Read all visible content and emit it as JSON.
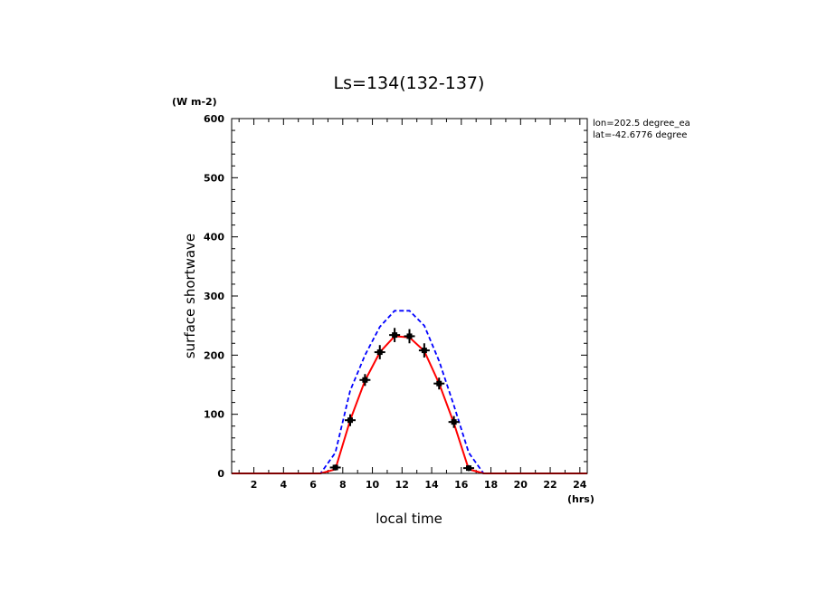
{
  "chart_data": {
    "type": "line",
    "title": "Ls=134(132-137)",
    "xlabel": "local time",
    "ylabel": "surface shortwave",
    "x_unit": "(hrs)",
    "y_unit": "(W m-2)",
    "annotations": [
      "lon=202.5 degree_ea",
      "lat=-42.6776 degree"
    ],
    "xlim": [
      0.5,
      24.5
    ],
    "ylim": [
      0,
      600
    ],
    "x_ticks": [
      2,
      4,
      6,
      8,
      10,
      12,
      14,
      16,
      18,
      20,
      22,
      24
    ],
    "y_ticks": [
      0,
      100,
      200,
      300,
      400,
      500,
      600
    ],
    "grid": false,
    "series": [
      {
        "style": "dashed",
        "color": "#0000ff",
        "x": [
          0.5,
          1.5,
          2.5,
          3.5,
          4.5,
          5.5,
          6.5,
          7.5,
          8.5,
          9.5,
          10.5,
          11.5,
          12.5,
          13.5,
          14.5,
          15.5,
          16.5,
          17.5,
          18.5,
          19.5,
          20.5,
          21.5,
          22.5,
          23.5,
          24.5
        ],
        "y": [
          0,
          0,
          0,
          0,
          0,
          0,
          0,
          35,
          140,
          200,
          248,
          275,
          275,
          250,
          190,
          115,
          35,
          0,
          0,
          0,
          0,
          0,
          0,
          0,
          0
        ]
      },
      {
        "style": "solid",
        "color": "#ff0000",
        "x": [
          0.5,
          1.5,
          2.5,
          3.5,
          4.5,
          5.5,
          6.5,
          7.5,
          8.5,
          9.5,
          10.5,
          11.5,
          12.5,
          13.5,
          14.5,
          15.5,
          16.5,
          17.5,
          18.5,
          19.5,
          20.5,
          21.5,
          22.5,
          23.5,
          24.5
        ],
        "y": [
          0,
          0,
          0,
          0,
          0,
          0,
          0,
          7,
          90,
          157,
          205,
          232,
          230,
          207,
          152,
          85,
          7,
          0,
          0,
          0,
          0,
          0,
          0,
          0,
          0
        ]
      },
      {
        "style": "markers",
        "color": "#000000",
        "x": [
          7.5,
          8.5,
          9.5,
          10.5,
          11.5,
          12.5,
          13.5,
          14.5,
          15.5,
          16.5
        ],
        "y": [
          10,
          90,
          158,
          205,
          234,
          232,
          208,
          152,
          87,
          9
        ],
        "err": [
          5,
          10,
          10,
          12,
          12,
          12,
          12,
          10,
          10,
          5
        ]
      }
    ]
  }
}
